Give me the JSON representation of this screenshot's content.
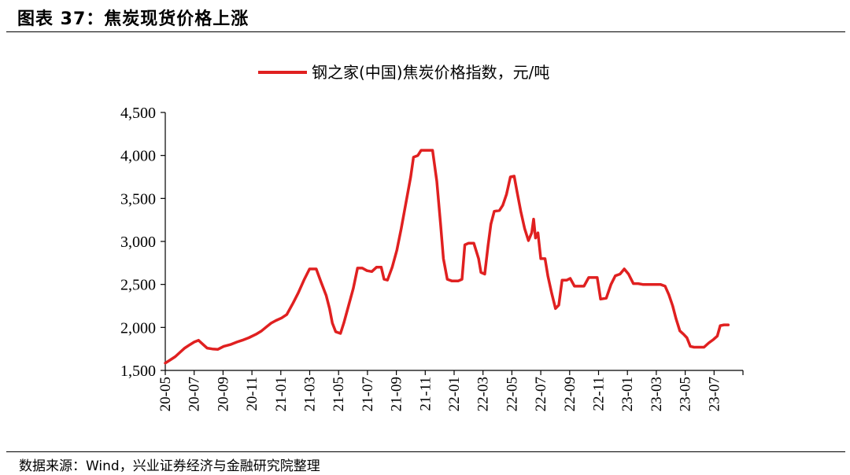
{
  "figure": {
    "title": "图表 37：焦炭现货价格上涨",
    "source": "数据来源：Wind，兴业证券经济与金融研究院整理"
  },
  "colors": {
    "series": "#e02020",
    "axis": "#000000"
  },
  "chart_data": {
    "type": "line",
    "title": "",
    "xlabel": "",
    "ylabel": "",
    "ylim": [
      1500,
      4500
    ],
    "y_ticks": [
      1500,
      2000,
      2500,
      3000,
      3500,
      4000,
      4500
    ],
    "y_tick_labels": [
      "1,500",
      "2,000",
      "2,500",
      "3,000",
      "3,500",
      "4,000",
      "4,500"
    ],
    "x_tick_labels": [
      "20-05",
      "20-07",
      "20-09",
      "20-11",
      "21-01",
      "21-03",
      "21-05",
      "21-07",
      "21-09",
      "21-11",
      "22-01",
      "22-03",
      "22-05",
      "22-07",
      "22-09",
      "22-11",
      "23-01",
      "23-03",
      "23-05",
      "23-07"
    ],
    "x_range": [
      "2020-05-01",
      "2023-08-31"
    ],
    "grid": false,
    "legend_position": "top",
    "series": [
      {
        "name": "钢之家(中国)焦炭价格指数，元/吨",
        "points": [
          [
            "2020-05-01",
            1585
          ],
          [
            "2020-05-11",
            1620
          ],
          [
            "2020-05-22",
            1660
          ],
          [
            "2020-06-01",
            1710
          ],
          [
            "2020-06-11",
            1760
          ],
          [
            "2020-06-22",
            1800
          ],
          [
            "2020-07-01",
            1830
          ],
          [
            "2020-07-10",
            1850
          ],
          [
            "2020-07-20",
            1800
          ],
          [
            "2020-07-28",
            1760
          ],
          [
            "2020-08-08",
            1750
          ],
          [
            "2020-08-20",
            1745
          ],
          [
            "2020-09-01",
            1780
          ],
          [
            "2020-09-15",
            1800
          ],
          [
            "2020-09-29",
            1830
          ],
          [
            "2020-10-10",
            1850
          ],
          [
            "2020-10-24",
            1880
          ],
          [
            "2020-11-08",
            1920
          ],
          [
            "2020-11-20",
            1960
          ],
          [
            "2020-12-01",
            2010
          ],
          [
            "2020-12-10",
            2050
          ],
          [
            "2020-12-20",
            2080
          ],
          [
            "2021-01-01",
            2110
          ],
          [
            "2021-01-12",
            2150
          ],
          [
            "2021-01-25",
            2280
          ],
          [
            "2021-02-05",
            2400
          ],
          [
            "2021-02-18",
            2560
          ],
          [
            "2021-03-01",
            2680
          ],
          [
            "2021-03-15",
            2680
          ],
          [
            "2021-03-25",
            2530
          ],
          [
            "2021-04-05",
            2370
          ],
          [
            "2021-04-12",
            2220
          ],
          [
            "2021-04-18",
            2050
          ],
          [
            "2021-04-25",
            1950
          ],
          [
            "2021-05-05",
            1930
          ],
          [
            "2021-05-12",
            2050
          ],
          [
            "2021-05-22",
            2250
          ],
          [
            "2021-06-01",
            2450
          ],
          [
            "2021-06-10",
            2690
          ],
          [
            "2021-06-20",
            2690
          ],
          [
            "2021-06-30",
            2660
          ],
          [
            "2021-07-10",
            2650
          ],
          [
            "2021-07-20",
            2700
          ],
          [
            "2021-07-30",
            2700
          ],
          [
            "2021-08-05",
            2560
          ],
          [
            "2021-08-12",
            2550
          ],
          [
            "2021-08-22",
            2700
          ],
          [
            "2021-09-01",
            2900
          ],
          [
            "2021-09-10",
            3150
          ],
          [
            "2021-09-20",
            3450
          ],
          [
            "2021-09-30",
            3750
          ],
          [
            "2021-10-06",
            3980
          ],
          [
            "2021-10-15",
            4000
          ],
          [
            "2021-10-22",
            4060
          ],
          [
            "2021-11-05",
            4060
          ],
          [
            "2021-11-15",
            4060
          ],
          [
            "2021-11-24",
            3700
          ],
          [
            "2021-12-02",
            3200
          ],
          [
            "2021-12-08",
            2800
          ],
          [
            "2021-12-16",
            2560
          ],
          [
            "2021-12-26",
            2540
          ],
          [
            "2022-01-08",
            2540
          ],
          [
            "2022-01-16",
            2560
          ],
          [
            "2022-01-22",
            2960
          ],
          [
            "2022-01-30",
            2980
          ],
          [
            "2022-02-10",
            2980
          ],
          [
            "2022-02-20",
            2800
          ],
          [
            "2022-02-25",
            2640
          ],
          [
            "2022-03-05",
            2620
          ],
          [
            "2022-03-12",
            2950
          ],
          [
            "2022-03-18",
            3200
          ],
          [
            "2022-03-25",
            3350
          ],
          [
            "2022-04-05",
            3360
          ],
          [
            "2022-04-12",
            3420
          ],
          [
            "2022-04-20",
            3550
          ],
          [
            "2022-04-28",
            3750
          ],
          [
            "2022-05-06",
            3760
          ],
          [
            "2022-05-12",
            3580
          ],
          [
            "2022-05-20",
            3350
          ],
          [
            "2022-05-28",
            3150
          ],
          [
            "2022-06-05",
            3010
          ],
          [
            "2022-06-12",
            3100
          ],
          [
            "2022-06-16",
            3260
          ],
          [
            "2022-06-20",
            3040
          ],
          [
            "2022-06-25",
            3100
          ],
          [
            "2022-07-01",
            2800
          ],
          [
            "2022-07-10",
            2800
          ],
          [
            "2022-07-16",
            2600
          ],
          [
            "2022-07-24",
            2400
          ],
          [
            "2022-08-01",
            2220
          ],
          [
            "2022-08-08",
            2260
          ],
          [
            "2022-08-15",
            2550
          ],
          [
            "2022-08-25",
            2550
          ],
          [
            "2022-09-01",
            2570
          ],
          [
            "2022-09-10",
            2480
          ],
          [
            "2022-09-20",
            2480
          ],
          [
            "2022-09-30",
            2480
          ],
          [
            "2022-10-10",
            2580
          ],
          [
            "2022-10-20",
            2580
          ],
          [
            "2022-10-28",
            2580
          ],
          [
            "2022-11-04",
            2330
          ],
          [
            "2022-11-16",
            2340
          ],
          [
            "2022-11-26",
            2500
          ],
          [
            "2022-12-05",
            2600
          ],
          [
            "2022-12-15",
            2620
          ],
          [
            "2022-12-24",
            2680
          ],
          [
            "2023-01-02",
            2620
          ],
          [
            "2023-01-12",
            2510
          ],
          [
            "2023-01-22",
            2510
          ],
          [
            "2023-02-01",
            2500
          ],
          [
            "2023-02-15",
            2500
          ],
          [
            "2023-03-01",
            2500
          ],
          [
            "2023-03-10",
            2500
          ],
          [
            "2023-03-20",
            2480
          ],
          [
            "2023-03-28",
            2380
          ],
          [
            "2023-04-05",
            2250
          ],
          [
            "2023-04-12",
            2100
          ],
          [
            "2023-04-20",
            1960
          ],
          [
            "2023-04-28",
            1920
          ],
          [
            "2023-05-05",
            1880
          ],
          [
            "2023-05-12",
            1780
          ],
          [
            "2023-05-20",
            1770
          ],
          [
            "2023-06-01",
            1770
          ],
          [
            "2023-06-10",
            1770
          ],
          [
            "2023-06-20",
            1820
          ],
          [
            "2023-06-30",
            1860
          ],
          [
            "2023-07-08",
            1900
          ],
          [
            "2023-07-14",
            2020
          ],
          [
            "2023-07-22",
            2030
          ],
          [
            "2023-07-31",
            2030
          ]
        ]
      }
    ]
  }
}
